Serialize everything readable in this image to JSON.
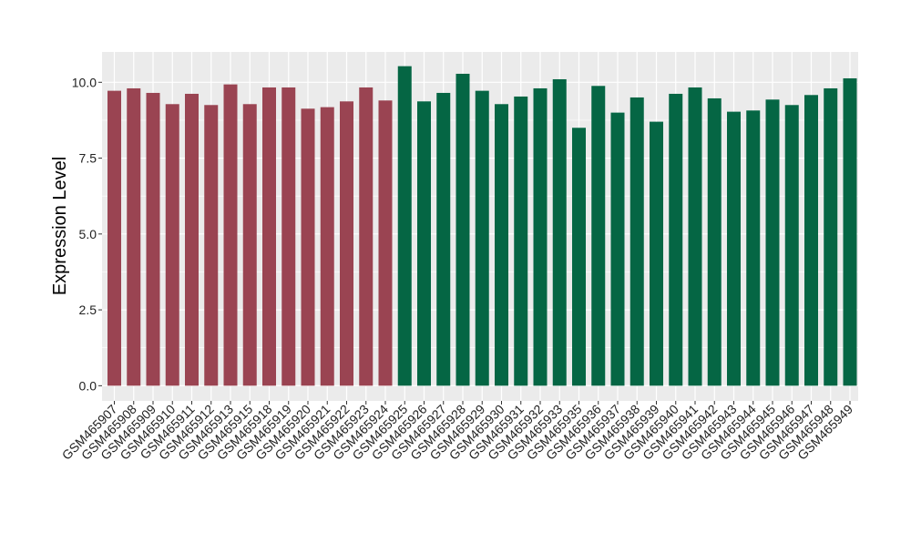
{
  "chart_data": {
    "type": "bar",
    "title": "",
    "xlabel": "",
    "ylabel": "Expression Level",
    "ylim": [
      -0.5,
      11.0
    ],
    "yticks": [
      0.0,
      2.5,
      5.0,
      7.5,
      10.0
    ],
    "ytick_labels": [
      "0.0",
      "2.5",
      "5.0",
      "7.5",
      "10.0"
    ],
    "grid": true,
    "legend": "none",
    "background": "#ebebeb",
    "colors": {
      "group_1": "#9a4452",
      "group_2": "#056644",
      "grid": "#ffffff"
    },
    "categories": [
      "GSM465907",
      "GSM465908",
      "GSM465909",
      "GSM465910",
      "GSM465911",
      "GSM465912",
      "GSM465913",
      "GSM465915",
      "GSM465918",
      "GSM465919",
      "GSM465920",
      "GSM465921",
      "GSM465922",
      "GSM465923",
      "GSM465924",
      "GSM465925",
      "GSM465926",
      "GSM465927",
      "GSM465928",
      "GSM465929",
      "GSM465930",
      "GSM465931",
      "GSM465932",
      "GSM465933",
      "GSM465935",
      "GSM465936",
      "GSM465937",
      "GSM465938",
      "GSM465939",
      "GSM465940",
      "GSM465941",
      "GSM465942",
      "GSM465943",
      "GSM465944",
      "GSM465945",
      "GSM465946",
      "GSM465947",
      "GSM465948",
      "GSM465949"
    ],
    "values": [
      9.72,
      9.8,
      9.65,
      9.28,
      9.62,
      9.25,
      9.93,
      9.28,
      9.83,
      9.83,
      9.13,
      9.18,
      9.37,
      9.83,
      9.4,
      10.53,
      9.37,
      9.65,
      10.28,
      9.72,
      9.28,
      9.53,
      9.8,
      10.1,
      8.5,
      9.88,
      9.0,
      9.5,
      8.7,
      9.62,
      9.83,
      9.47,
      9.03,
      9.07,
      9.43,
      9.25,
      9.58,
      9.8,
      10.13
    ],
    "groups": [
      1,
      1,
      1,
      1,
      1,
      1,
      1,
      1,
      1,
      1,
      1,
      1,
      1,
      1,
      1,
      2,
      2,
      2,
      2,
      2,
      2,
      2,
      2,
      2,
      2,
      2,
      2,
      2,
      2,
      2,
      2,
      2,
      2,
      2,
      2,
      2,
      2,
      2,
      2
    ]
  }
}
